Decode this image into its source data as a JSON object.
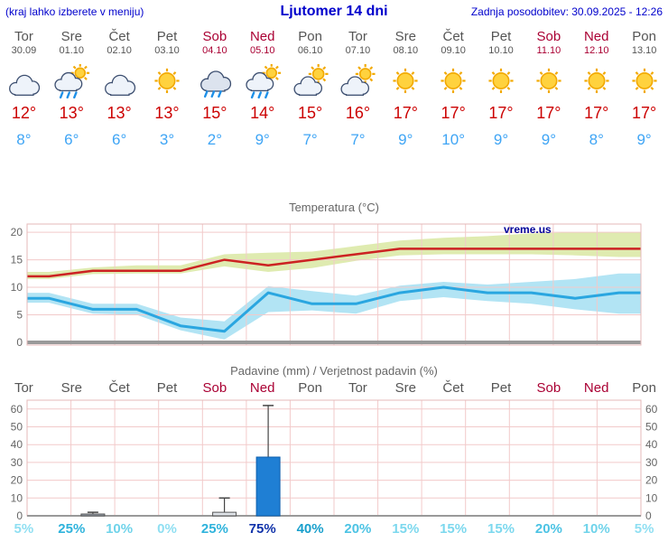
{
  "header": {
    "menu_hint": "(kraj lahko izberete v meniju)",
    "title": "Ljutomer 14 dni",
    "last_update": "Zadnja posodobitev: 30.09.2025 - 12:26"
  },
  "colors": {
    "header_blue": "#0000cc",
    "weekday_text": "#555555",
    "weekend_text": "#aa0033",
    "temp_max_red": "#cc0000",
    "temp_min_blue": "#3fa5f5",
    "watermark_blue": "#000099",
    "grid_pink": "#f2caca"
  },
  "days": [
    {
      "name": "Tor",
      "date": "30.09",
      "weekend": false,
      "icon": "cloudy",
      "tmax": "12°",
      "tmin": "8°"
    },
    {
      "name": "Sre",
      "date": "01.10",
      "weekend": false,
      "icon": "sun-cloud-rain",
      "tmax": "13°",
      "tmin": "6°"
    },
    {
      "name": "Čet",
      "date": "02.10",
      "weekend": false,
      "icon": "cloudy",
      "tmax": "13°",
      "tmin": "6°"
    },
    {
      "name": "Pet",
      "date": "03.10",
      "weekend": false,
      "icon": "sunny",
      "tmax": "13°",
      "tmin": "3°"
    },
    {
      "name": "Sob",
      "date": "04.10",
      "weekend": true,
      "icon": "rain",
      "tmax": "15°",
      "tmin": "2°"
    },
    {
      "name": "Ned",
      "date": "05.10",
      "weekend": true,
      "icon": "sun-cloud-rain",
      "tmax": "14°",
      "tmin": "9°"
    },
    {
      "name": "Pon",
      "date": "06.10",
      "weekend": false,
      "icon": "partly-cloudy",
      "tmax": "15°",
      "tmin": "7°"
    },
    {
      "name": "Tor",
      "date": "07.10",
      "weekend": false,
      "icon": "partly-cloudy",
      "tmax": "16°",
      "tmin": "7°"
    },
    {
      "name": "Sre",
      "date": "08.10",
      "weekend": false,
      "icon": "sunny",
      "tmax": "17°",
      "tmin": "9°"
    },
    {
      "name": "Čet",
      "date": "09.10",
      "weekend": false,
      "icon": "sunny",
      "tmax": "17°",
      "tmin": "10°"
    },
    {
      "name": "Pet",
      "date": "10.10",
      "weekend": false,
      "icon": "sunny",
      "tmax": "17°",
      "tmin": "9°"
    },
    {
      "name": "Sob",
      "date": "11.10",
      "weekend": true,
      "icon": "sunny",
      "tmax": "17°",
      "tmin": "9°"
    },
    {
      "name": "Ned",
      "date": "12.10",
      "weekend": true,
      "icon": "sunny",
      "tmax": "17°",
      "tmin": "8°"
    },
    {
      "name": "Pon",
      "date": "13.10",
      "weekend": false,
      "icon": "sunny",
      "tmax": "17°",
      "tmin": "9°"
    }
  ],
  "chart_data": [
    {
      "type": "line",
      "title": "Temperatura (°C)",
      "watermark": "vreme.us",
      "x_labels": [
        "Tor",
        "Sre",
        "Čet",
        "Pet",
        "Sob",
        "Ned",
        "Pon",
        "Tor",
        "Sre",
        "Čet",
        "Pet",
        "Sob",
        "Ned",
        "Pon"
      ],
      "ylim": [
        0,
        21
      ],
      "yticks": [
        0,
        5,
        10,
        15,
        20
      ],
      "grid": true,
      "series": [
        {
          "name": "temp-max",
          "color": "#cc2222",
          "band_color": "#d9e8a2",
          "values": [
            12,
            13,
            13,
            13,
            15,
            14,
            15,
            16,
            17,
            17,
            17,
            17,
            17,
            17
          ],
          "band_upper": [
            12.8,
            13.6,
            14,
            14,
            16,
            16.3,
            16.5,
            17.5,
            18.5,
            19,
            19.3,
            19.8,
            20,
            20
          ],
          "band_lower": [
            11.5,
            12.4,
            12.5,
            12.5,
            13.8,
            12.8,
            13.5,
            14.8,
            15.8,
            16,
            16,
            16,
            15.8,
            15.5
          ]
        },
        {
          "name": "temp-min",
          "color": "#2aa6e0",
          "band_color": "#a5dff2",
          "values": [
            8,
            6,
            6,
            3,
            2,
            9,
            7,
            7,
            9,
            10,
            9,
            9,
            8,
            9
          ],
          "band_upper": [
            9,
            7,
            7,
            4.5,
            3.8,
            10.2,
            9.3,
            8.5,
            10.3,
            11,
            10.5,
            11,
            11.5,
            12.5
          ],
          "band_lower": [
            7.2,
            5.2,
            5,
            2.2,
            0.5,
            5.5,
            5.8,
            5.2,
            7.5,
            8.2,
            7.5,
            7,
            6,
            5.2
          ]
        }
      ]
    },
    {
      "type": "bar",
      "title": "Padavine (mm) / Verjetnost padavin (%)",
      "categories": [
        "Tor",
        "Sre",
        "Čet",
        "Pet",
        "Sob",
        "Ned",
        "Pon",
        "Tor",
        "Sre",
        "Čet",
        "Pet",
        "Sob",
        "Ned",
        "Pon"
      ],
      "weekend_flags": [
        false,
        false,
        false,
        false,
        true,
        true,
        false,
        false,
        false,
        false,
        false,
        true,
        true,
        false
      ],
      "values": [
        0,
        1,
        0,
        0,
        2,
        33,
        0,
        0,
        0,
        0,
        0,
        0,
        0,
        0
      ],
      "whisker_high": [
        0,
        2,
        0,
        0,
        10,
        62,
        0,
        0,
        0,
        0,
        0,
        0,
        0,
        0
      ],
      "bar_colors": [
        null,
        "#9aa4ae",
        null,
        null,
        "#dfe3e8",
        "#1f7fd4",
        null,
        null,
        null,
        null,
        null,
        null,
        null,
        null
      ],
      "bar_strokes": [
        null,
        "#555555",
        null,
        null,
        "#555555",
        "#0d5fae",
        null,
        null,
        null,
        null,
        null,
        null,
        null,
        null
      ],
      "probabilities": [
        "5%",
        "25%",
        "10%",
        "0%",
        "25%",
        "75%",
        "40%",
        "20%",
        "15%",
        "15%",
        "15%",
        "20%",
        "10%",
        "5%"
      ],
      "prob_colors": [
        "#8fdff2",
        "#2fb3dc",
        "#6fd3ea",
        "#8fdff2",
        "#2fb3dc",
        "#1133aa",
        "#189fcc",
        "#4cc3e4",
        "#7cd8ee",
        "#7cd8ee",
        "#7cd8ee",
        "#4cc3e4",
        "#6fd3ea",
        "#8fdff2"
      ],
      "ylim": [
        0,
        65
      ],
      "yticks": [
        0,
        10,
        20,
        30,
        40,
        50,
        60
      ]
    }
  ]
}
